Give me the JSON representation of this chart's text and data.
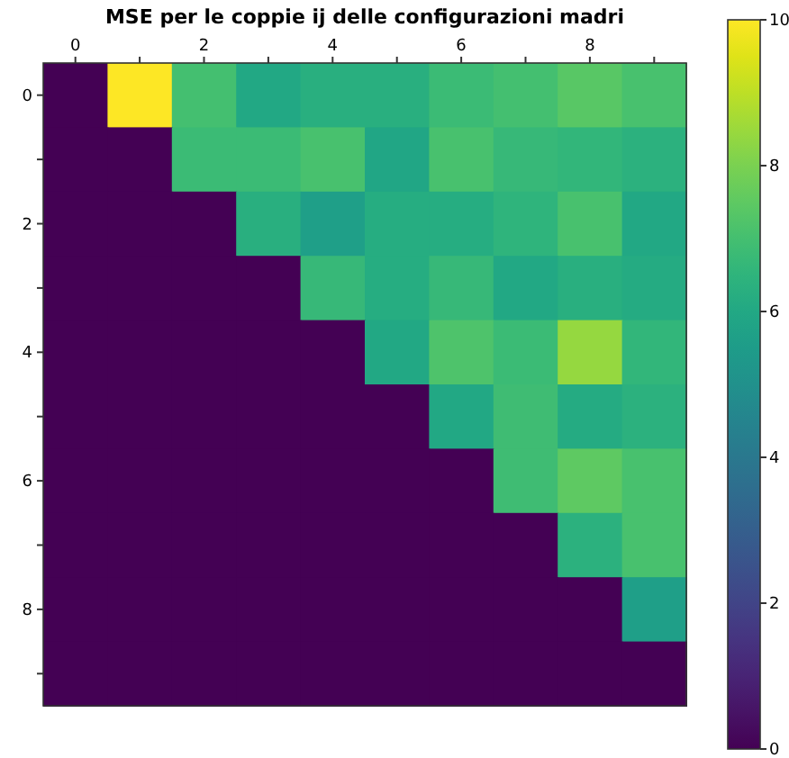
{
  "chart_data": {
    "type": "heatmap",
    "title": "MSE per le coppie ij delle configurazioni madri",
    "categories": [
      "0",
      null,
      "2",
      null,
      "4",
      null,
      "6",
      null,
      "8",
      null
    ],
    "y_categories": [
      "0",
      null,
      "2",
      null,
      "4",
      null,
      "6",
      null,
      "8",
      null
    ],
    "cells": [
      [
        0,
        10,
        7.0,
        6.0,
        6.3,
        6.3,
        6.8,
        7.0,
        7.4,
        7.1
      ],
      [
        0,
        0,
        6.8,
        6.8,
        7.1,
        5.9,
        7.1,
        6.7,
        6.6,
        6.4
      ],
      [
        0,
        0,
        0,
        6.3,
        5.6,
        6.2,
        6.2,
        6.5,
        7.1,
        6.0
      ],
      [
        0,
        0,
        0,
        0,
        6.7,
        6.2,
        6.7,
        6.0,
        6.3,
        6.1
      ],
      [
        0,
        0,
        0,
        0,
        0,
        6.0,
        7.2,
        6.8,
        8.4,
        6.6
      ],
      [
        0,
        0,
        0,
        0,
        0,
        0,
        6.0,
        6.9,
        6.1,
        6.4
      ],
      [
        0,
        0,
        0,
        0,
        0,
        0,
        0,
        6.9,
        7.5,
        7.1
      ],
      [
        0,
        0,
        0,
        0,
        0,
        0,
        0,
        0,
        6.4,
        7.1
      ],
      [
        0,
        0,
        0,
        0,
        0,
        0,
        0,
        0,
        0,
        5.6
      ],
      [
        0,
        0,
        0,
        0,
        0,
        0,
        0,
        0,
        0,
        0
      ]
    ],
    "clim": [
      0,
      10
    ],
    "cticks": [
      0,
      2,
      4,
      6,
      8,
      10
    ]
  }
}
